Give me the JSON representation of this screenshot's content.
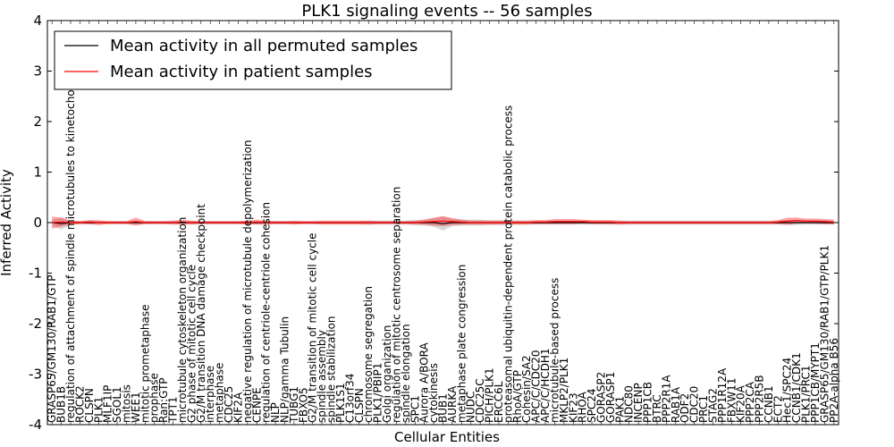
{
  "chart_data": {
    "type": "line",
    "title": "PLK1 signaling events -- 56 samples",
    "xlabel": "Cellular Entities",
    "ylabel": "Inferred Activity",
    "ylim": [
      -4,
      4
    ],
    "yticks": [
      -4,
      -3,
      -2,
      -1,
      0,
      1,
      2,
      3,
      4
    ],
    "legend": {
      "position": "top-left",
      "entries": [
        {
          "label": "Mean activity in all permuted samples",
          "color": "#000000"
        },
        {
          "label": "Mean activity in patient samples",
          "color": "#ff0000"
        }
      ]
    },
    "categories": [
      "GRASP65/GM130/RAB1/GTP",
      "BUB1B",
      "regulation of attachment of spindle microtubules to kinetochore",
      "ROCK2",
      "CLSPN",
      "PLK1",
      "MLF1IP",
      "SGOL1",
      "mitosis",
      "WEE1",
      "mitotic prometaphase",
      "prophase",
      "Ran:GTP",
      "TPT1",
      "microtubule cytoskeleton organization",
      "G2 phase of mitotic cell cycle",
      "G2/M transition DNA damage checkpoint",
      "interphase",
      "metaphase",
      "CDC25",
      "KIF2A",
      "negative regulation of microtubule depolymerization",
      "CENPE",
      "regulation of centriole-centriole cohesion",
      "NLP",
      "NLP/gamma Tubulin",
      "TUBG1",
      "FBXO5",
      "G2/M transition of mitotic cell cycle",
      "spindle assembly",
      "spindle stabilization",
      "PLK1S1",
      "C13orf34",
      "CLSPN",
      "chromosome segregation",
      "PLK1/PBIP1",
      "Golgi organization",
      "regulation of mitotic centrosome separation",
      "spindle elongation",
      "SPC1",
      "Aurora A/BORA",
      "cytokinesis",
      "BUB1",
      "AURKA",
      "metaphase plate congression",
      "NUDC",
      "CDC25C",
      "PICH/PLK1",
      "ERCC6L",
      "proteasomal ubiquitin-dependent protein catabolic process",
      "RhoA/GTP",
      "Cohesin/SA2",
      "APC/C/CDC20",
      "APC/C/HCDH1",
      "microtubule-based process",
      "MKLP2/PLK1",
      "KIF23",
      "RHOA",
      "SPC24",
      "GORASP2",
      "GORASP1",
      "PAK1",
      "NDC80",
      "INCENP",
      "PPP1CB",
      "BTRC",
      "PPP2R1A",
      "RAB1A",
      "ODF2",
      "CDC20",
      "PRC1",
      "STAG2",
      "PPP1R12A",
      "FBXW11",
      "KIF20A",
      "PPP2CA",
      "PPP2R5B",
      "CCNB1",
      "ECT2",
      "Hec1/SPC24",
      "CCNB1/CDK1",
      "PLK1/PRC1",
      "PPP1CB/MYPT1",
      "GRASP65/GM130/RAB1/GTP/PLK1",
      "PP2A-alpha B56"
    ],
    "series": [
      {
        "name": "Mean activity in all permuted samples",
        "color": "#000000",
        "values": [
          0,
          -0.02,
          0,
          0,
          0,
          0,
          0,
          0,
          0,
          0,
          0,
          0,
          0,
          0,
          0,
          0,
          0,
          0,
          0,
          0,
          0,
          0,
          0,
          0,
          0,
          0,
          0,
          0,
          0,
          0,
          0,
          0,
          0,
          0,
          0,
          0,
          0,
          0,
          0,
          0,
          0,
          0,
          -0.02,
          0,
          0,
          0,
          0,
          0,
          0,
          0,
          0,
          0,
          0,
          0,
          0,
          0,
          0,
          0,
          0,
          0,
          0,
          0,
          0,
          0,
          0,
          0,
          0,
          0,
          0,
          0,
          0,
          0,
          0,
          0,
          0,
          0,
          0,
          0,
          0,
          0,
          0,
          0,
          0,
          0,
          0
        ],
        "band": [
          0.05,
          0.12,
          0.04,
          0.03,
          0.04,
          0.03,
          0.03,
          0.03,
          0.03,
          0.03,
          0.03,
          0.03,
          0.03,
          0.03,
          0.03,
          0.03,
          0.03,
          0.03,
          0.03,
          0.03,
          0.03,
          0.03,
          0.03,
          0.03,
          0.03,
          0.03,
          0.03,
          0.03,
          0.03,
          0.03,
          0.03,
          0.03,
          0.03,
          0.03,
          0.04,
          0.04,
          0.04,
          0.04,
          0.04,
          0.05,
          0.06,
          0.08,
          0.14,
          0.07,
          0.06,
          0.06,
          0.06,
          0.05,
          0.05,
          0.05,
          0.04,
          0.04,
          0.04,
          0.04,
          0.04,
          0.04,
          0.04,
          0.04,
          0.04,
          0.04,
          0.04,
          0.04,
          0.04,
          0.04,
          0.04,
          0.04,
          0.04,
          0.04,
          0.04,
          0.04,
          0.04,
          0.04,
          0.04,
          0.04,
          0.04,
          0.04,
          0.04,
          0.04,
          0.04,
          0.05,
          0.05,
          0.04,
          0.04,
          0.04,
          0.03
        ]
      },
      {
        "name": "Mean activity in patient samples",
        "color": "#ff0000",
        "values": [
          0,
          0.01,
          0,
          0,
          0.01,
          0,
          0,
          0,
          0,
          0.02,
          0,
          0,
          0,
          0,
          0.01,
          0,
          0,
          0,
          0,
          0,
          0,
          0,
          0.01,
          0,
          0,
          0,
          0,
          0,
          0,
          0,
          0,
          0,
          0,
          0,
          0,
          0,
          0,
          0,
          0,
          0,
          0.01,
          0.02,
          0.03,
          0.02,
          0.01,
          0,
          0,
          0,
          0,
          0,
          0,
          0,
          0.01,
          0.01,
          0.02,
          0.02,
          0.02,
          0.02,
          0.01,
          0.01,
          0.01,
          0,
          0,
          0,
          0,
          0,
          0,
          0,
          0,
          0,
          0,
          0,
          0,
          0,
          0,
          0,
          0,
          0,
          0.01,
          0.03,
          0.04,
          0.03,
          0.03,
          0.02,
          0.01
        ],
        "band": [
          0.12,
          0.09,
          0.04,
          0.03,
          0.04,
          0.05,
          0.03,
          0.03,
          0.03,
          0.08,
          0.03,
          0.03,
          0.03,
          0.04,
          0.05,
          0.04,
          0.03,
          0.03,
          0.03,
          0.03,
          0.03,
          0.04,
          0.05,
          0.04,
          0.03,
          0.03,
          0.04,
          0.03,
          0.03,
          0.04,
          0.04,
          0.04,
          0.04,
          0.04,
          0.04,
          0.03,
          0.03,
          0.03,
          0.03,
          0.04,
          0.05,
          0.08,
          0.1,
          0.07,
          0.05,
          0.04,
          0.04,
          0.04,
          0.04,
          0.03,
          0.04,
          0.04,
          0.04,
          0.04,
          0.05,
          0.05,
          0.05,
          0.04,
          0.04,
          0.04,
          0.04,
          0.04,
          0.03,
          0.03,
          0.03,
          0.03,
          0.03,
          0.03,
          0.03,
          0.03,
          0.03,
          0.03,
          0.03,
          0.03,
          0.03,
          0.03,
          0.03,
          0.03,
          0.04,
          0.07,
          0.06,
          0.05,
          0.05,
          0.05,
          0.05
        ]
      }
    ]
  }
}
